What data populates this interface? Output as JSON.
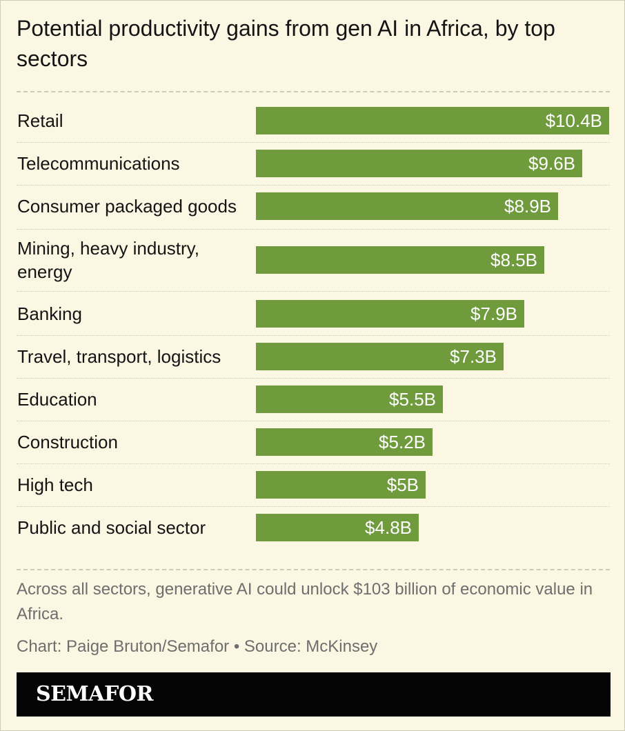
{
  "chart_data": {
    "type": "bar",
    "orientation": "horizontal",
    "title": "Potential productivity gains from gen AI in Africa, by top sectors",
    "categories": [
      "Retail",
      "Telecommunications",
      "Consumer packaged goods",
      "Mining, heavy industry, energy",
      "Banking",
      "Travel, transport, logistics",
      "Education",
      "Construction",
      "High tech",
      "Public and social sector"
    ],
    "values": [
      10.4,
      9.6,
      8.9,
      8.5,
      7.9,
      7.3,
      5.5,
      5.2,
      5,
      4.8
    ],
    "data_labels": [
      "$10.4B",
      "$9.6B",
      "$8.9B",
      "$8.5B",
      "$7.9B",
      "$7.3B",
      "$5.5B",
      "$5.2B",
      "$5B",
      "$4.8B"
    ],
    "unit": "billion USD",
    "xlim": [
      0,
      10.4
    ],
    "bar_color": "#6f9b3d",
    "grid": false,
    "legend": "none"
  },
  "note": "Across all sectors, generative AI could unlock $103 billion of economic value in Africa.",
  "credit": "Chart: Paige Bruton/Semafor • Source: McKinsey",
  "brand": {
    "name": "SEMAFOR",
    "background": "#050505"
  }
}
